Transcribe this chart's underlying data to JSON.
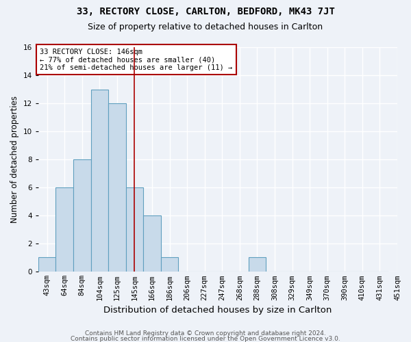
{
  "title1": "33, RECTORY CLOSE, CARLTON, BEDFORD, MK43 7JT",
  "title2": "Size of property relative to detached houses in Carlton",
  "xlabel": "Distribution of detached houses by size in Carlton",
  "ylabel": "Number of detached properties",
  "bin_labels": [
    "43sqm",
    "64sqm",
    "84sqm",
    "104sqm",
    "125sqm",
    "145sqm",
    "166sqm",
    "186sqm",
    "206sqm",
    "227sqm",
    "247sqm",
    "268sqm",
    "288sqm",
    "308sqm",
    "329sqm",
    "349sqm",
    "370sqm",
    "390sqm",
    "410sqm",
    "431sqm",
    "451sqm"
  ],
  "bar_centers": [
    0,
    1,
    2,
    3,
    4,
    5,
    6,
    7,
    8,
    9,
    10,
    11,
    12,
    13,
    14,
    15,
    16,
    17,
    18,
    19
  ],
  "bar_values": [
    1,
    6,
    8,
    13,
    12,
    6,
    4,
    1,
    0,
    0,
    0,
    0,
    1,
    0,
    0,
    0,
    0,
    0,
    0,
    0
  ],
  "bar_color": "#c8daea",
  "bar_edge_color": "#5f9fbf",
  "vline_x": 5,
  "vline_color": "#aa0000",
  "annotation_text": "33 RECTORY CLOSE: 146sqm\n← 77% of detached houses are smaller (40)\n21% of semi-detached houses are larger (11) →",
  "annotation_box_color": "#ffffff",
  "annotation_box_edge": "#aa0000",
  "ylim": [
    0,
    16
  ],
  "yticks": [
    0,
    2,
    4,
    6,
    8,
    10,
    12,
    14,
    16
  ],
  "footer1": "Contains HM Land Registry data © Crown copyright and database right 2024.",
  "footer2": "Contains public sector information licensed under the Open Government Licence v3.0.",
  "bg_color": "#eef2f8",
  "grid_color": "#ffffff",
  "title1_fontsize": 10,
  "title2_fontsize": 9,
  "xlabel_fontsize": 9.5,
  "ylabel_fontsize": 8.5,
  "footer_fontsize": 6.5,
  "tick_fontsize": 7.5,
  "ann_fontsize": 7.5
}
